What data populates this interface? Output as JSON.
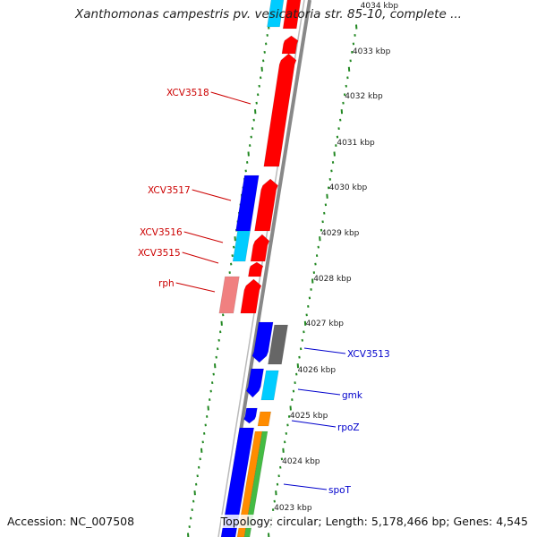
{
  "title": "Xanthomonas campestris pv. vesicatoria str. 85-10, complete ...",
  "footer": {
    "accession": "Accession: NC_007508",
    "topology": "Topology: circular; Length: 5,178,466 bp; Genes: 4,545"
  },
  "colors": {
    "forward_gene": "#ff0000",
    "forward_gene_light": "#f08080",
    "reverse_gene": "#0000ff",
    "reverse_gene_light": "#00ccff",
    "gray_gene": "#666666",
    "orange_gene": "#ff8c00",
    "green_gene": "#44bb44",
    "backbone": "#888888",
    "ticks": "#228822",
    "forward_label": "#cc0000",
    "reverse_label": "#0000cc"
  },
  "scale_labels": [
    "4034 kbp",
    "4033 kbp",
    "4032 kbp",
    "4031 kbp",
    "4030 kbp",
    "4029 kbp",
    "4028 kbp",
    "4027 kbp",
    "4026 kbp",
    "4025 kbp",
    "4024 kbp",
    "4023 kbp"
  ],
  "forward_labels": [
    "XCV3518",
    "XCV3517",
    "XCV3516",
    "XCV3515",
    "rph"
  ],
  "reverse_labels": [
    "XCV3513",
    "gmk",
    "rpoZ",
    "spoT"
  ]
}
